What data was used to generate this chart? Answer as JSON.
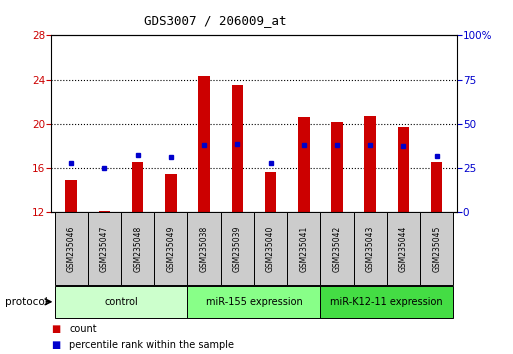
{
  "title": "GDS3007 / 206009_at",
  "samples": [
    "GSM235046",
    "GSM235047",
    "GSM235048",
    "GSM235049",
    "GSM235038",
    "GSM235039",
    "GSM235040",
    "GSM235041",
    "GSM235042",
    "GSM235043",
    "GSM235044",
    "GSM235045"
  ],
  "bar_values": [
    14.9,
    12.1,
    16.6,
    15.5,
    24.3,
    23.5,
    15.65,
    20.6,
    20.2,
    20.7,
    19.7,
    16.6
  ],
  "bar_base": 12,
  "percentile_values": [
    16.5,
    16.05,
    17.2,
    17.0,
    18.1,
    18.2,
    16.5,
    18.1,
    18.1,
    18.1,
    18.0,
    17.1
  ],
  "ylim_left": [
    12,
    28
  ],
  "ylim_right": [
    0,
    100
  ],
  "yticks_left": [
    12,
    16,
    20,
    24,
    28
  ],
  "yticks_right": [
    0,
    25,
    50,
    75,
    100
  ],
  "groups": [
    {
      "label": "control",
      "indices": [
        0,
        1,
        2,
        3
      ],
      "color": "#ccffcc"
    },
    {
      "label": "miR-155 expression",
      "indices": [
        4,
        5,
        6,
        7
      ],
      "color": "#88ff88"
    },
    {
      "label": "miR-K12-11 expression",
      "indices": [
        8,
        9,
        10,
        11
      ],
      "color": "#44dd44"
    }
  ],
  "bar_color": "#cc0000",
  "percentile_color": "#0000cc",
  "left_axis_color": "#cc0000",
  "right_axis_color": "#0000cc",
  "background_plot": "#ffffff",
  "sample_box_color": "#cccccc",
  "grid_color": "#000000",
  "protocol_label": "protocol",
  "legend_count": "count",
  "legend_pct": "percentile rank within the sample",
  "grid_yticks": [
    16,
    20,
    24
  ],
  "bar_width": 0.35
}
